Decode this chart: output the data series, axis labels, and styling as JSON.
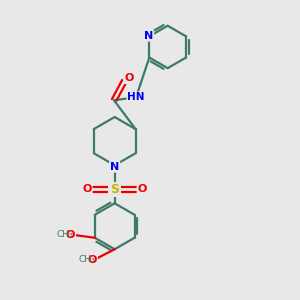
{
  "bg_color": "#e8e8e8",
  "bond_color": "#3d7a6a",
  "nitrogen_color": "#0000ee",
  "oxygen_color": "#ee0000",
  "sulfur_color": "#bbbb00",
  "linewidth": 1.6,
  "figsize": [
    3.0,
    3.0
  ],
  "dpi": 100,
  "xlim": [
    0,
    10
  ],
  "ylim": [
    0,
    10
  ]
}
